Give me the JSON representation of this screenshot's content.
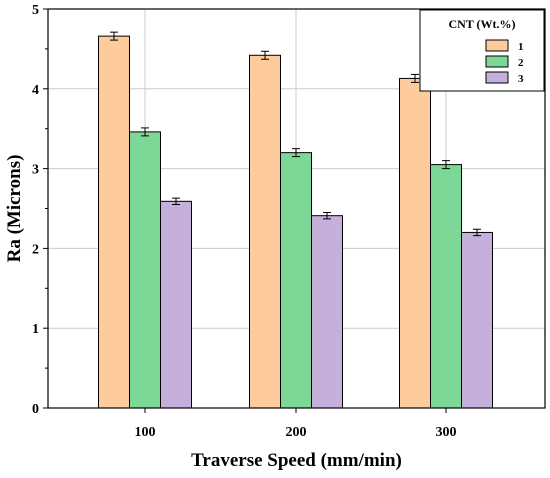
{
  "chart_data": {
    "type": "bar",
    "title": "",
    "xlabel": "Traverse Speed (mm/min)",
    "ylabel": "Ra (Microns)",
    "categories": [
      "100",
      "200",
      "300"
    ],
    "ylim": [
      0,
      5
    ],
    "yticks": [
      "0",
      "1",
      "2",
      "3",
      "4",
      "5"
    ],
    "grid": true,
    "legend": {
      "title": "CNT (Wt.%)",
      "placement": "top-right"
    },
    "series": [
      {
        "name": "1",
        "color": "#FDCB9C",
        "values": [
          4.66,
          4.42,
          4.13
        ],
        "errors": [
          0.05,
          0.05,
          0.05
        ]
      },
      {
        "name": "2",
        "color": "#7DD897",
        "values": [
          3.46,
          3.2,
          3.05
        ],
        "errors": [
          0.05,
          0.05,
          0.05
        ]
      },
      {
        "name": "3",
        "color": "#C5B0DC",
        "values": [
          2.59,
          2.41,
          2.2
        ],
        "errors": [
          0.04,
          0.04,
          0.04
        ]
      }
    ]
  }
}
